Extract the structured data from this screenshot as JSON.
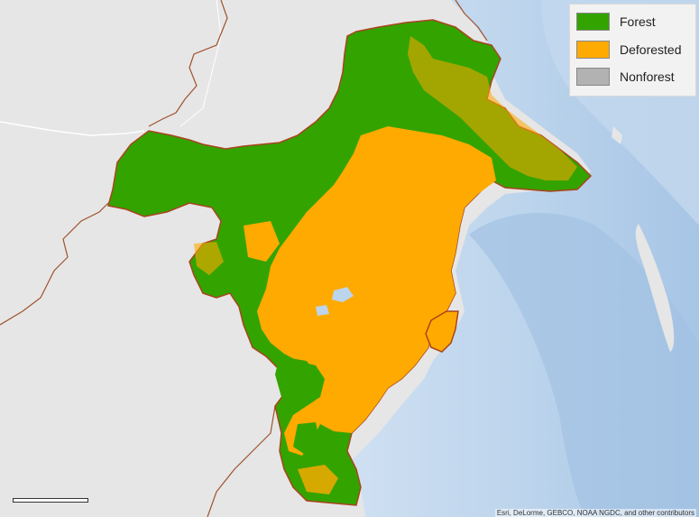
{
  "legend": {
    "items": [
      {
        "label": "Forest",
        "color": "#33a300"
      },
      {
        "label": "Deforested",
        "color": "#ffaa00"
      },
      {
        "label": "Nonforest",
        "color": "#b2b2b2"
      }
    ]
  },
  "colors": {
    "land": "#e6e6e6",
    "ocean": "#bcd4ec",
    "deep_ocean": "#9dbfe0",
    "boundary": "#a9441f",
    "country_border": "#a0522d",
    "neighbor_border": "#ffffff"
  },
  "attribution": "Esri, DeLorme, GEBCO, NOAA NGDC, and other contributors"
}
